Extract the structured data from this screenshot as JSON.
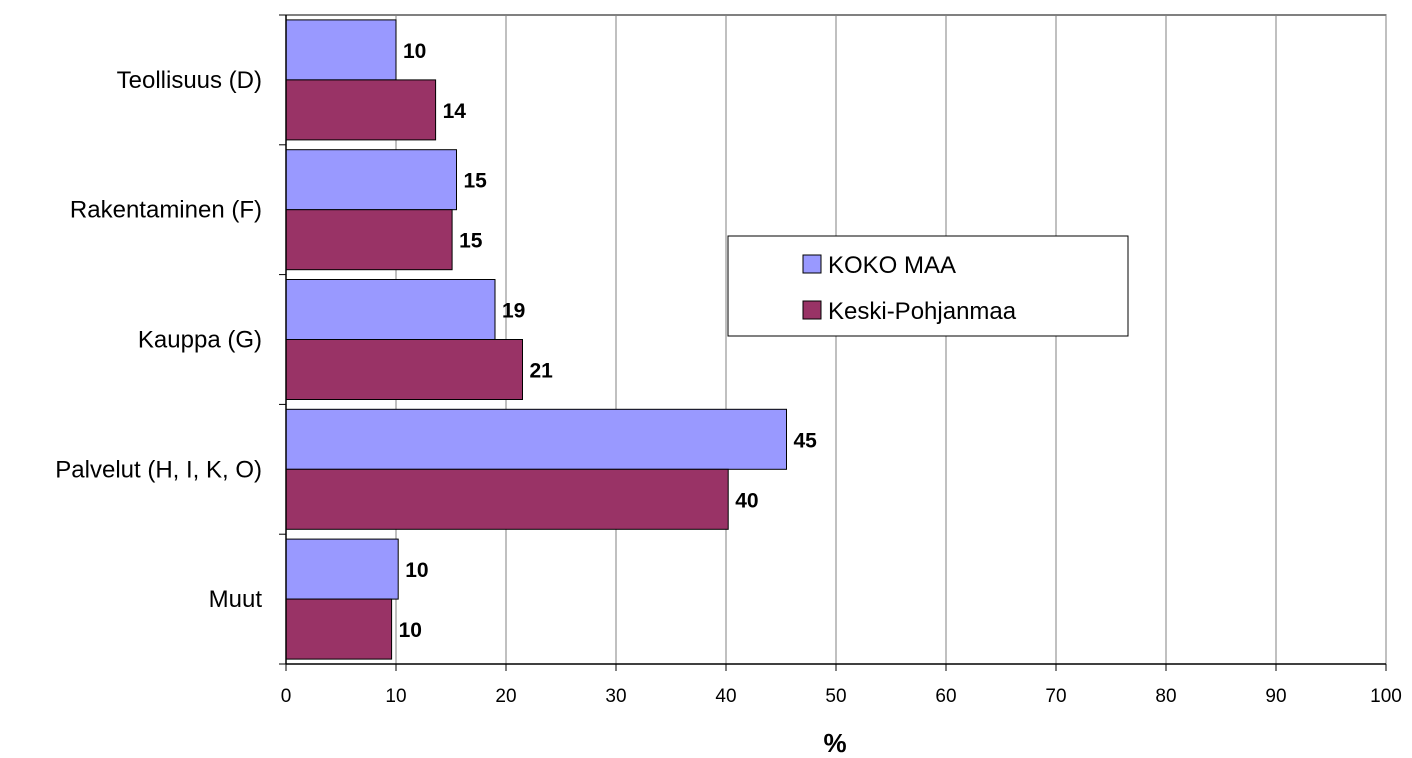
{
  "chart_data": {
    "type": "bar",
    "orientation": "horizontal",
    "title": "",
    "xlabel": "%",
    "ylabel": "",
    "xlim": [
      0,
      100
    ],
    "x_ticks": [
      "0",
      "10",
      "20",
      "30",
      "40",
      "50",
      "60",
      "70",
      "80",
      "90",
      "100"
    ],
    "categories": [
      "Teollisuus (D)",
      "Rakentaminen (F)",
      "Kauppa (G)",
      "Palvelut (H, I, K, O)",
      "Muut"
    ],
    "series": [
      {
        "name": "KOKO MAA",
        "color": "#9999ff",
        "values": [
          10,
          15.5,
          19,
          45.5,
          10.2
        ],
        "labels": [
          "10",
          "15",
          "19",
          "45",
          "10"
        ]
      },
      {
        "name": "Keski-Pohjanmaa",
        "color": "#993366",
        "values": [
          13.6,
          15.1,
          21.5,
          40.2,
          9.6
        ],
        "labels": [
          "14",
          "15",
          "21",
          "40",
          "10"
        ]
      }
    ],
    "grid": true,
    "legend_position": "inside-right"
  }
}
